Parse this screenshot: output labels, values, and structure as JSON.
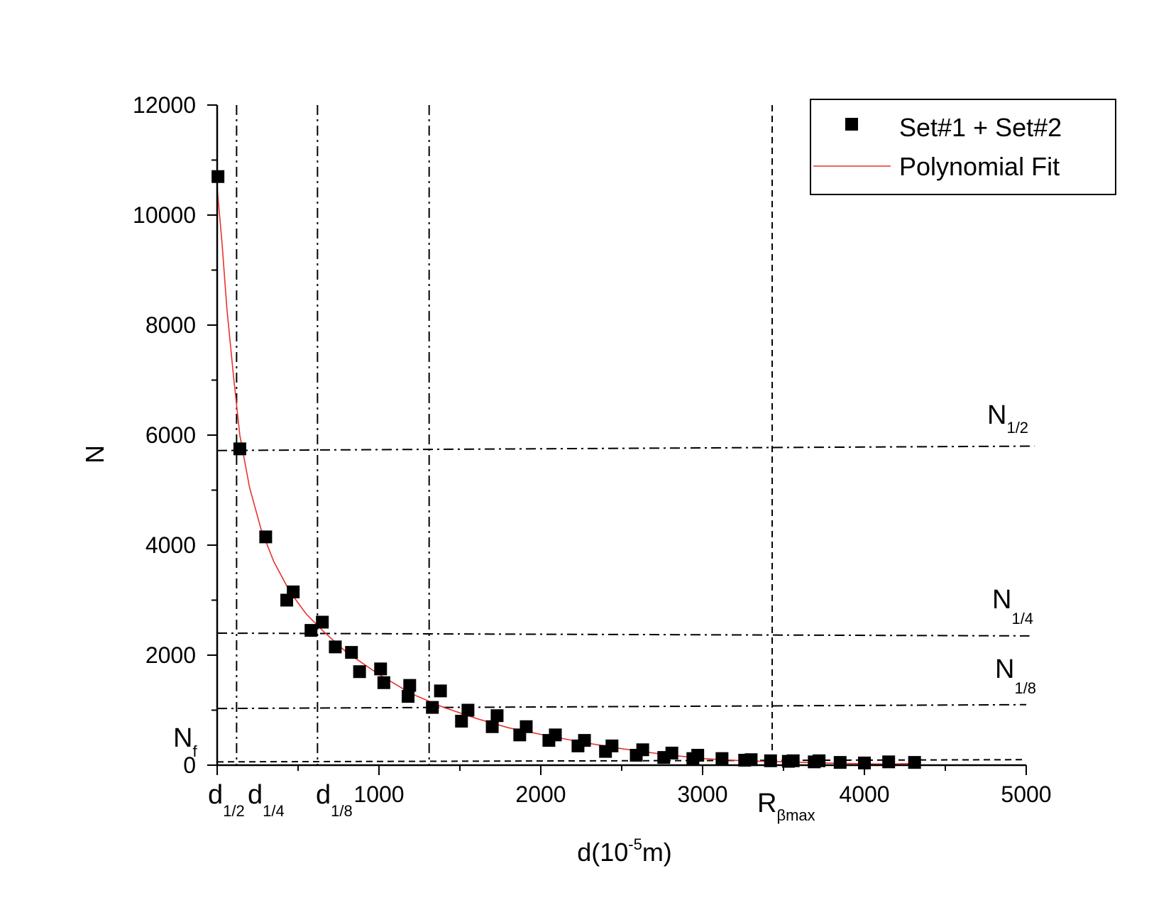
{
  "chart_data": {
    "type": "scatter",
    "xlabel": {
      "base": "d(10",
      "sup": "-5",
      "tail": "m)"
    },
    "ylabel": "N",
    "xlim": [
      0,
      5000
    ],
    "ylim": [
      0,
      12000
    ],
    "x_ticks": [
      0,
      1000,
      2000,
      3000,
      4000,
      5000
    ],
    "x_tick_labels": [
      "",
      "1000",
      "2000",
      "3000",
      "4000",
      "5000"
    ],
    "y_ticks": [
      0,
      2000,
      4000,
      6000,
      8000,
      10000,
      12000
    ],
    "y_tick_labels": [
      "0",
      "2000",
      "4000",
      "6000",
      "8000",
      "10000",
      "12000"
    ],
    "x_minor_step": 500,
    "y_minor_step": 1000,
    "grid": false,
    "legend": {
      "position": "top-right",
      "entries": [
        {
          "label": "Set#1 + Set#2",
          "marker": "square",
          "color": "#000000"
        },
        {
          "label": "Polynomial Fit",
          "marker": "line",
          "color": "#e8322d"
        }
      ]
    },
    "series": [
      {
        "name": "Set#1 + Set#2",
        "kind": "scatter",
        "color": "#000000",
        "x": [
          5,
          140,
          300,
          430,
          470,
          580,
          650,
          730,
          830,
          880,
          1010,
          1030,
          1180,
          1190,
          1330,
          1380,
          1510,
          1550,
          1700,
          1730,
          1870,
          1910,
          2050,
          2090,
          2230,
          2270,
          2400,
          2440,
          2590,
          2630,
          2760,
          2810,
          2940,
          2970,
          3120,
          3260,
          3300,
          3420,
          3530,
          3560,
          3690,
          3720,
          3850,
          4000,
          4150,
          4310
        ],
        "y": [
          10700,
          5750,
          4150,
          3000,
          3150,
          2450,
          2600,
          2150,
          2050,
          1700,
          1750,
          1500,
          1250,
          1450,
          1050,
          1350,
          800,
          1000,
          700,
          900,
          550,
          700,
          450,
          550,
          350,
          450,
          250,
          350,
          180,
          280,
          140,
          220,
          120,
          180,
          120,
          90,
          100,
          80,
          70,
          80,
          60,
          80,
          50,
          40,
          60,
          50
        ]
      },
      {
        "name": "Polynomial Fit",
        "kind": "line",
        "color": "#e8322d",
        "x": [
          0,
          30,
          60,
          100,
          140,
          200,
          270,
          350,
          450,
          550,
          650,
          800,
          1000,
          1200,
          1400,
          1600,
          1800,
          2000,
          2250,
          2500,
          2750,
          3000,
          3250,
          3500,
          3750,
          4000,
          4150,
          4300,
          4350
        ],
        "y": [
          10500,
          9500,
          8300,
          7100,
          6000,
          5050,
          4300,
          3700,
          3150,
          2750,
          2450,
          2050,
          1650,
          1300,
          1050,
          850,
          680,
          560,
          420,
          300,
          200,
          120,
          80,
          60,
          40,
          25,
          20,
          30,
          50
        ]
      }
    ],
    "reference_lines": {
      "vertical": [
        {
          "x": 120,
          "style": "dashdot"
        },
        {
          "x": 620,
          "style": "dashdot"
        },
        {
          "x": 1310,
          "style": "dashdot"
        },
        {
          "x": 3430,
          "style": "dashed"
        }
      ],
      "horizontal": [
        {
          "y_start": 5720,
          "y_end": 5800,
          "x_start": 0,
          "x_end": 5050,
          "style": "dashdot"
        },
        {
          "y_start": 2400,
          "y_end": 2350,
          "x_start": 0,
          "x_end": 5020,
          "style": "dashdot"
        },
        {
          "y_start": 1030,
          "y_end": 1100,
          "x_start": 0,
          "x_end": 5000,
          "style": "dashdot"
        },
        {
          "y_start": 60,
          "y_end": 100,
          "x_start": 0,
          "x_end": 5000,
          "style": "dashed"
        }
      ]
    },
    "annotations": {
      "n_half": {
        "main": "N",
        "sub": "1/2"
      },
      "n_quarter": {
        "main": "N",
        "sub": "1/4"
      },
      "n_eighth": {
        "main": "N",
        "sub": "1/8"
      },
      "n_f": {
        "main": "N",
        "sup": "f"
      },
      "d_half": {
        "main": "d",
        "sub": "1/2"
      },
      "d_quarter": {
        "main": "d",
        "sub": "1/4"
      },
      "d_eighth": {
        "main": "d",
        "sub": "1/8"
      },
      "r_beta_max": {
        "main": "R",
        "sub": "βmax"
      }
    }
  }
}
